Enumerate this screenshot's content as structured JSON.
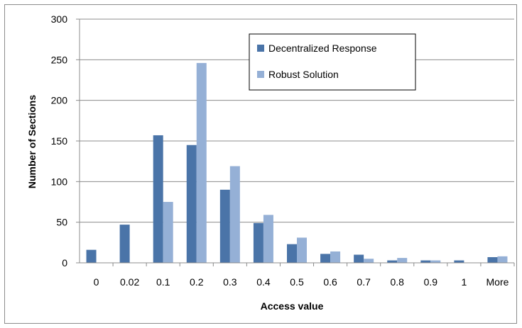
{
  "chart_data": {
    "type": "bar",
    "title": "",
    "xlabel": "Access value",
    "ylabel": "Number of Sections",
    "categories": [
      "0",
      "0.02",
      "0.1",
      "0.2",
      "0.3",
      "0.4",
      "0.5",
      "0.6",
      "0.7",
      "0.8",
      "0.9",
      "1",
      "More"
    ],
    "series": [
      {
        "name": "Decentralized Response",
        "color": "#4a74a8",
        "values": [
          16,
          47,
          157,
          145,
          90,
          49,
          23,
          11,
          10,
          3,
          3,
          3,
          7
        ]
      },
      {
        "name": "Robust Solution",
        "color": "#95b0d6",
        "values": [
          0,
          0,
          75,
          246,
          119,
          59,
          31,
          14,
          5,
          6,
          3,
          0,
          8
        ]
      }
    ],
    "ylim": [
      0,
      300
    ],
    "yticks": [
      0,
      50,
      100,
      150,
      200,
      250,
      300
    ],
    "grid": true,
    "legend": "top-center"
  }
}
